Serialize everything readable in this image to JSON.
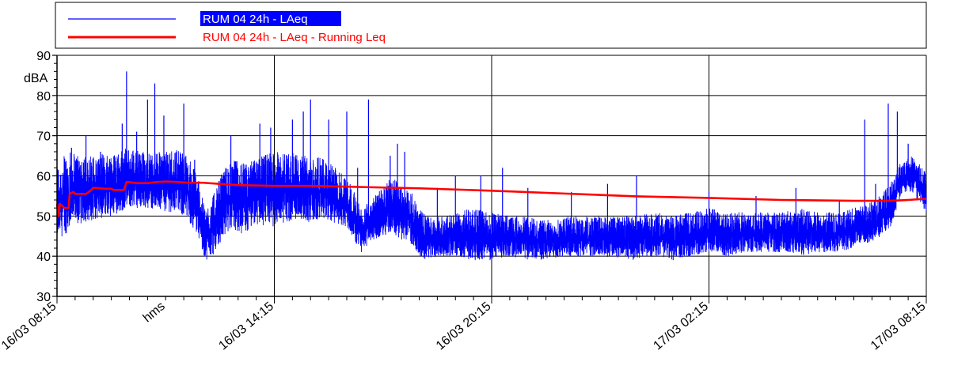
{
  "chart_data": {
    "type": "line",
    "ylabel": "dBA",
    "ylim": [
      30,
      90
    ],
    "yticks": [
      30,
      40,
      50,
      60,
      70,
      80,
      90
    ],
    "x_tick_labels": [
      "16/03 08:15",
      "hms",
      "16/03 14:15",
      "16/03 20:15",
      "17/03 02:15",
      "17/03 08:15"
    ],
    "x_tick_hours": [
      0,
      3,
      6,
      12,
      18,
      24
    ],
    "x_range_hours": [
      0,
      24
    ],
    "grid": true,
    "legend_position": "top",
    "series": [
      {
        "name": "RUM 04 24h - LAeq",
        "color": "#0000ff",
        "style": "noisy-level",
        "envelope": {
          "hours": [
            0,
            0.3,
            0.6,
            1.0,
            1.5,
            2.0,
            2.5,
            3.0,
            3.3,
            3.6,
            3.9,
            4.0,
            4.1,
            4.3,
            4.6,
            4.9,
            5.0,
            5.2,
            5.4,
            5.6,
            5.9,
            6.2,
            6.5,
            6.8,
            7.1,
            7.4,
            7.7,
            8.0,
            8.2,
            8.4,
            8.7,
            9.0,
            9.2,
            9.5,
            9.8,
            10.0,
            10.2,
            10.5,
            11.0,
            11.5,
            12.0,
            12.5,
            13.0,
            13.5,
            14.0,
            15.0,
            16.0,
            16.5,
            17.0,
            17.5,
            18.0,
            18.5,
            19.0,
            19.5,
            20.0,
            20.5,
            21.0,
            21.5,
            22.0,
            22.3,
            22.6,
            23.0,
            23.3,
            23.6,
            24.0
          ],
          "min": [
            44,
            46,
            48,
            49,
            50,
            52,
            52,
            51,
            51,
            49,
            45,
            41,
            39,
            40,
            45,
            47,
            45,
            45,
            47,
            48,
            47,
            48,
            49,
            49,
            48,
            49,
            48,
            47,
            44,
            41,
            44,
            45,
            46,
            44,
            43,
            40,
            39,
            40,
            40,
            39,
            39,
            40,
            39,
            39,
            40,
            40,
            39,
            40,
            39,
            40,
            41,
            40,
            41,
            41,
            41,
            40,
            41,
            41,
            42,
            43,
            44,
            47,
            55,
            56,
            51
          ],
          "max": [
            63,
            66,
            66,
            65,
            66,
            67,
            66,
            66,
            67,
            65,
            60,
            55,
            52,
            55,
            62,
            64,
            64,
            63,
            64,
            65,
            66,
            66,
            66,
            65,
            65,
            64,
            62,
            60,
            56,
            52,
            55,
            57,
            60,
            58,
            56,
            52,
            50,
            50,
            51,
            52,
            51,
            50,
            50,
            49,
            50,
            50,
            50,
            51,
            50,
            51,
            52,
            51,
            51,
            51,
            51,
            52,
            51,
            51,
            52,
            53,
            54,
            58,
            64,
            65,
            61
          ],
          "spikes": [
            [
              0.4,
              67
            ],
            [
              0.8,
              70
            ],
            [
              1.2,
              66
            ],
            [
              1.5,
              63
            ],
            [
              1.8,
              73
            ],
            [
              1.92,
              86
            ],
            [
              2.2,
              71
            ],
            [
              2.5,
              79
            ],
            [
              2.7,
              83
            ],
            [
              2.95,
              75
            ],
            [
              3.5,
              78
            ],
            [
              3.8,
              64
            ],
            [
              4.8,
              70
            ],
            [
              5.6,
              73
            ],
            [
              5.9,
              72
            ],
            [
              6.5,
              74
            ],
            [
              6.8,
              76
            ],
            [
              7.0,
              79
            ],
            [
              7.5,
              74
            ],
            [
              8.0,
              76
            ],
            [
              8.3,
              62
            ],
            [
              8.6,
              79
            ],
            [
              9.2,
              65
            ],
            [
              9.4,
              68
            ],
            [
              9.6,
              66
            ],
            [
              10.5,
              57
            ],
            [
              11.0,
              60
            ],
            [
              11.7,
              60
            ],
            [
              12.3,
              62
            ],
            [
              13.0,
              57
            ],
            [
              14.2,
              56
            ],
            [
              15.2,
              58
            ],
            [
              16.0,
              60
            ],
            [
              18.0,
              56
            ],
            [
              19.3,
              55
            ],
            [
              20.4,
              57
            ],
            [
              21.6,
              54
            ],
            [
              22.3,
              74
            ],
            [
              22.6,
              58
            ],
            [
              22.95,
              78
            ],
            [
              23.2,
              76
            ],
            [
              23.5,
              68
            ]
          ]
        }
      },
      {
        "name": "RUM 04 24h - LAeq - Running Leq",
        "color": "#ff0000",
        "style": "stepped-smooth",
        "x": [
          0,
          0.05,
          0.08,
          0.15,
          0.2,
          0.3,
          0.32,
          0.35,
          0.45,
          0.5,
          0.6,
          0.8,
          0.95,
          1.0,
          1.1,
          1.3,
          1.5,
          1.55,
          1.6,
          1.8,
          1.85,
          1.92,
          1.93,
          2.2,
          2.5,
          2.8,
          3.0,
          3.3,
          3.6,
          4.0,
          4.5,
          5.0,
          6.0,
          7.0,
          8.0,
          9.0,
          10.0,
          12.0,
          14.0,
          16.0,
          18.0,
          20.0,
          22.0,
          23.0,
          23.5,
          24.0
        ],
        "y": [
          53,
          50,
          53,
          52.5,
          52,
          52,
          52,
          55.5,
          56,
          55.5,
          55.5,
          55.5,
          56.5,
          57,
          57,
          56.8,
          56.8,
          56.5,
          56.5,
          56.5,
          56.5,
          58.5,
          58.5,
          58.2,
          58.2,
          58.5,
          58.6,
          58.5,
          58.3,
          58.3,
          58.0,
          57.7,
          57.5,
          57.5,
          57.3,
          57.1,
          56.9,
          56.3,
          55.6,
          54.9,
          54.5,
          54.0,
          53.8,
          53.8,
          54.0,
          54.3
        ]
      }
    ]
  }
}
